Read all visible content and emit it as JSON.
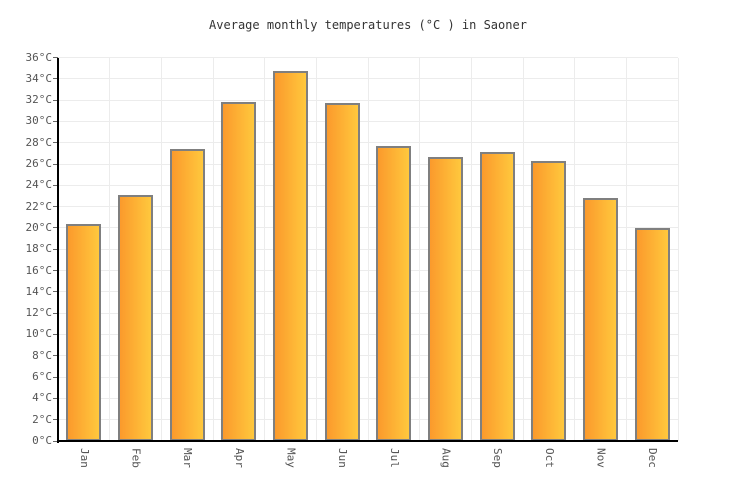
{
  "chart_data": {
    "type": "bar",
    "title": "Average monthly temperatures (°C ) in Saoner",
    "categories": [
      "Jan",
      "Feb",
      "Mar",
      "Apr",
      "May",
      "Jun",
      "Jul",
      "Aug",
      "Sep",
      "Oct",
      "Nov",
      "Dec"
    ],
    "values": [
      20.4,
      23.1,
      27.4,
      31.8,
      34.7,
      31.7,
      27.7,
      26.7,
      27.1,
      26.3,
      22.8,
      20.0
    ],
    "xlabel": "",
    "ylabel": "",
    "ylim": [
      0,
      36
    ],
    "ytick_step": 2,
    "ytick_suffix": "°C",
    "grid": true,
    "legend_position": "none",
    "bar_color_left": "#FB9A2C",
    "bar_color_right": "#FFC83D",
    "bar_border_color": "#7F7F7F",
    "gridline_color": "#ECECEC",
    "axis_color": "#000000",
    "tick_label_color": "#555555",
    "title_color": "#333333",
    "background_color": "#FFFFFF"
  }
}
